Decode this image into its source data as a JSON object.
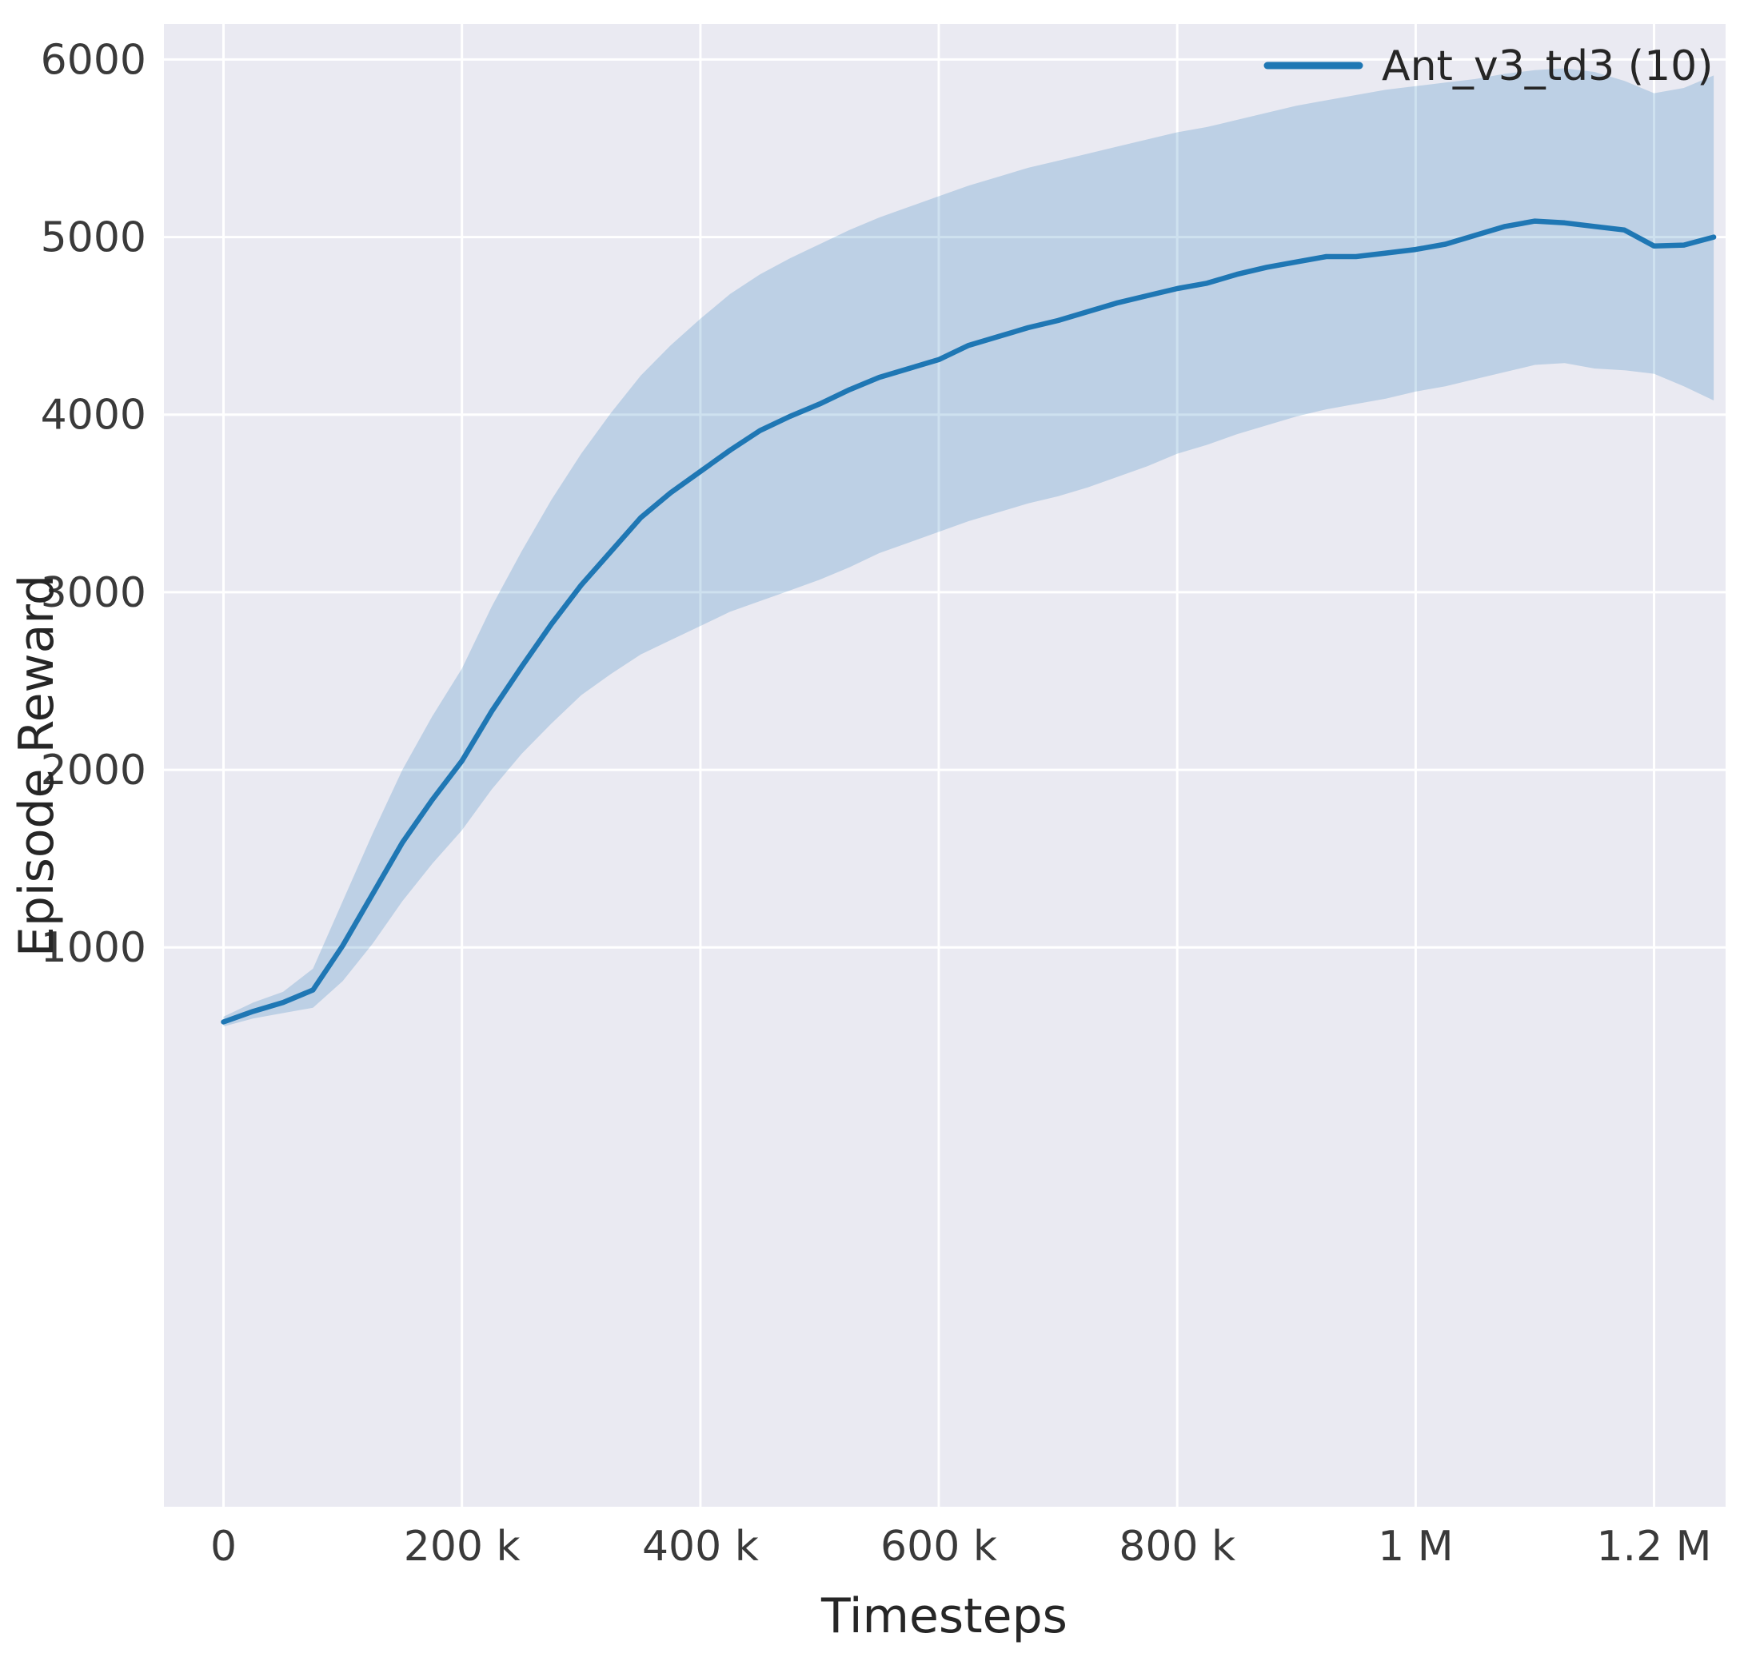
{
  "figure": {
    "bg": "#ffffff",
    "plot_bg": "#eaeaf2",
    "grid_color": "#ffffff",
    "text_color": "#262626",
    "tick_color": "#3a3a3a",
    "line_color": "#1f77b4",
    "band_fill": "rgba(31,119,180,0.22)"
  },
  "chart_data": {
    "type": "line",
    "title": "",
    "xlabel": "Timesteps",
    "ylabel": "Episode Reward",
    "grid": true,
    "legend": {
      "position": "upper right",
      "entries": [
        {
          "label": "Ant_v3_td3 (10)",
          "color": "#1f77b4"
        }
      ]
    },
    "xlim": [
      -50000,
      1260000
    ],
    "ylim": [
      -2150,
      6200
    ],
    "x_ticks": [
      {
        "value": 0,
        "label": "0"
      },
      {
        "value": 200000,
        "label": "200 k"
      },
      {
        "value": 400000,
        "label": "400 k"
      },
      {
        "value": 600000,
        "label": "600 k"
      },
      {
        "value": 800000,
        "label": "800 k"
      },
      {
        "value": 1000000,
        "label": "1 M"
      },
      {
        "value": 1200000,
        "label": "1.2 M"
      }
    ],
    "y_ticks": [
      {
        "value": 1000,
        "label": "1000"
      },
      {
        "value": 2000,
        "label": "2000"
      },
      {
        "value": 3000,
        "label": "3000"
      },
      {
        "value": 4000,
        "label": "4000"
      },
      {
        "value": 5000,
        "label": "5000"
      },
      {
        "value": 6000,
        "label": "6000"
      }
    ],
    "x": [
      0,
      25000,
      50000,
      75000,
      100000,
      125000,
      150000,
      175000,
      200000,
      225000,
      250000,
      275000,
      300000,
      325000,
      350000,
      375000,
      400000,
      425000,
      450000,
      475000,
      500000,
      525000,
      550000,
      575000,
      600000,
      625000,
      650000,
      675000,
      700000,
      725000,
      750000,
      775000,
      800000,
      825000,
      850000,
      875000,
      900000,
      925000,
      950000,
      975000,
      1000000,
      1025000,
      1050000,
      1075000,
      1100000,
      1125000,
      1150000,
      1175000,
      1200000,
      1225000,
      1250000
    ],
    "series": [
      {
        "name": "Ant_v3_td3 (10)",
        "mean": [
          580,
          640,
          690,
          760,
          1010,
          1300,
          1590,
          1830,
          2050,
          2330,
          2580,
          2820,
          3040,
          3230,
          3420,
          3560,
          3680,
          3800,
          3910,
          3990,
          4060,
          4140,
          4210,
          4260,
          4310,
          4390,
          4440,
          4490,
          4530,
          4580,
          4630,
          4670,
          4710,
          4740,
          4790,
          4830,
          4860,
          4890,
          4890,
          4910,
          4930,
          4960,
          5010,
          5060,
          5090,
          5080,
          5060,
          5040,
          4950,
          4955,
          5000
        ],
        "lower": [
          555,
          600,
          630,
          660,
          810,
          1020,
          1260,
          1470,
          1660,
          1890,
          2090,
          2260,
          2420,
          2540,
          2650,
          2730,
          2810,
          2890,
          2950,
          3010,
          3070,
          3140,
          3220,
          3280,
          3340,
          3400,
          3450,
          3500,
          3540,
          3590,
          3650,
          3710,
          3780,
          3830,
          3890,
          3940,
          3990,
          4030,
          4060,
          4090,
          4130,
          4160,
          4200,
          4240,
          4280,
          4290,
          4260,
          4250,
          4230,
          4160,
          4080
        ],
        "upper": [
          610,
          690,
          750,
          880,
          1260,
          1640,
          2000,
          2300,
          2570,
          2920,
          3230,
          3520,
          3780,
          4010,
          4220,
          4390,
          4540,
          4680,
          4790,
          4880,
          4960,
          5040,
          5110,
          5170,
          5230,
          5290,
          5340,
          5390,
          5430,
          5470,
          5510,
          5550,
          5590,
          5620,
          5660,
          5700,
          5740,
          5770,
          5800,
          5830,
          5850,
          5870,
          5890,
          5920,
          5940,
          5950,
          5930,
          5880,
          5810,
          5840,
          5910
        ]
      }
    ]
  }
}
